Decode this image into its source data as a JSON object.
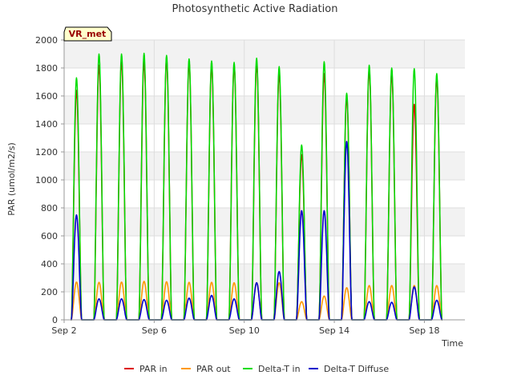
{
  "chart_data": {
    "type": "line",
    "title": "Photosynthetic Active Radiation",
    "xlabel": "Time",
    "ylabel": "PAR (umol/m2/s)",
    "badge": "VR_met",
    "xlim": [
      2.0,
      19.8
    ],
    "ylim": [
      0,
      2000
    ],
    "x_ticks": [
      {
        "value": 2,
        "label": "Sep 2"
      },
      {
        "value": 6,
        "label": "Sep 6"
      },
      {
        "value": 10,
        "label": "Sep 10"
      },
      {
        "value": 14,
        "label": "Sep 14"
      },
      {
        "value": 18,
        "label": "Sep 18"
      }
    ],
    "y_ticks": [
      0,
      200,
      400,
      600,
      800,
      1000,
      1200,
      1400,
      1600,
      1800,
      2000
    ],
    "grid": true,
    "legend": "bottom",
    "days": [
      2.55,
      3.55,
      4.55,
      5.55,
      6.55,
      7.55,
      8.55,
      9.55,
      10.55,
      11.55,
      12.55,
      13.55,
      14.55,
      15.55,
      16.55,
      17.55,
      18.55
    ],
    "series": [
      {
        "name": "PAR in",
        "color": "#dd0000",
        "daily_peak_values": [
          1640,
          1820,
          1850,
          1850,
          1860,
          1840,
          1820,
          1820,
          1830,
          1760,
          1180,
          1760,
          1590,
          1790,
          1760,
          1540,
          1730
        ]
      },
      {
        "name": "PAR out",
        "color": "#ff9900",
        "daily_peak_values": [
          270,
          268,
          270,
          275,
          272,
          268,
          268,
          265,
          265,
          265,
          130,
          170,
          230,
          245,
          245,
          245,
          245
        ]
      },
      {
        "name": "Delta-T in",
        "color": "#00dd00",
        "daily_peak_values": [
          1730,
          1900,
          1900,
          1905,
          1890,
          1865,
          1850,
          1840,
          1870,
          1810,
          1250,
          1845,
          1620,
          1820,
          1800,
          1795,
          1760
        ]
      },
      {
        "name": "Delta-T Diffuse",
        "color": "#0000cc",
        "daily_peak_values": [
          750,
          150,
          150,
          145,
          140,
          155,
          175,
          150,
          265,
          345,
          780,
          780,
          1275,
          130,
          125,
          235,
          140
        ]
      }
    ]
  }
}
